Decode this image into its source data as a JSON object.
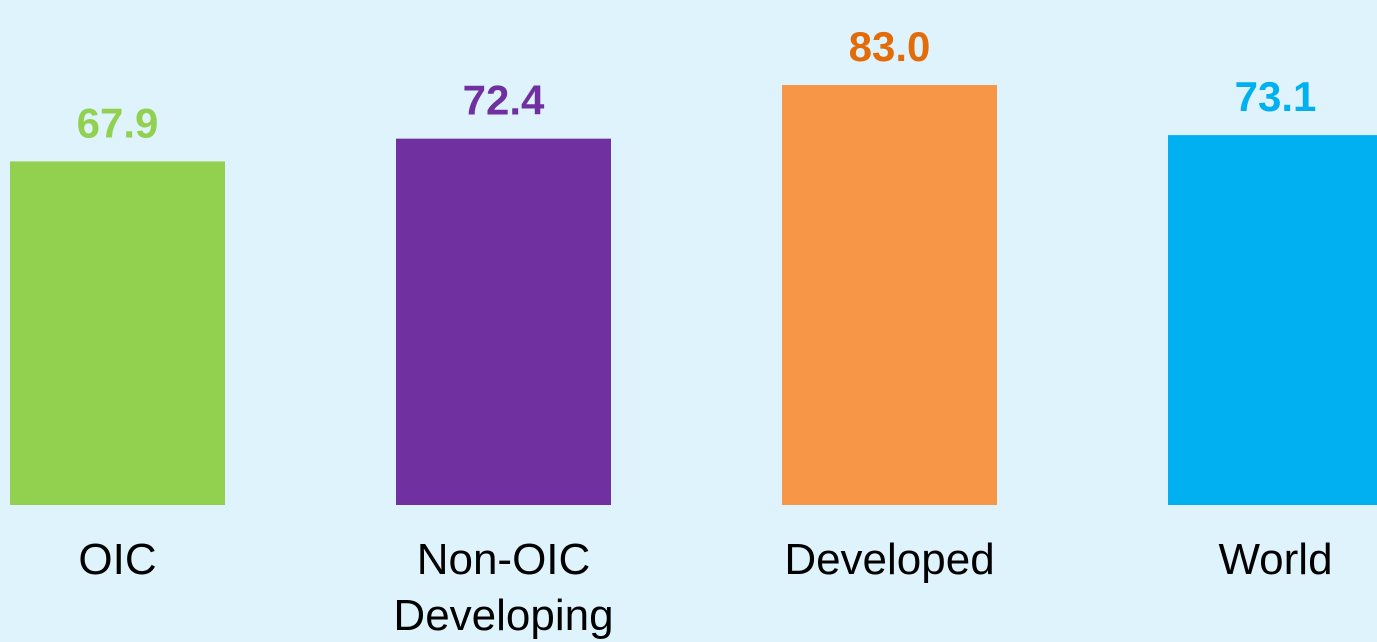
{
  "chart_data": {
    "type": "bar",
    "categories": [
      "OIC",
      "Non-OIC Developing",
      "Developed",
      "World"
    ],
    "values": [
      67.9,
      72.4,
      83.0,
      73.1
    ],
    "value_labels": [
      "67.9",
      "72.4",
      "83.0",
      "73.1"
    ],
    "colors": [
      "#92d050",
      "#7030a0",
      "#f79646",
      "#00b0f0"
    ],
    "label_colors": [
      "#92d050",
      "#7030a0",
      "#e36c0a",
      "#00b0f0"
    ]
  }
}
